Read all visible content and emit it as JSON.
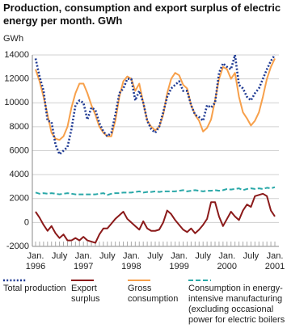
{
  "chart_data": {
    "type": "line",
    "title": "Production, consumption and export surplus of electric energy per month. GWh",
    "y_label": "GWh",
    "categories": [
      "Jan.",
      null,
      null,
      null,
      null,
      null,
      "July",
      null,
      null,
      null,
      null,
      null,
      "Jan.",
      null,
      null,
      null,
      null,
      null,
      "July",
      null,
      null,
      null,
      null,
      null,
      "Jan.",
      null,
      null,
      null,
      null,
      null,
      "July",
      null,
      null,
      null,
      null,
      null,
      "Jan.",
      null,
      null,
      null,
      null,
      null,
      "July",
      null,
      null,
      null,
      null,
      null,
      "Jan.",
      null,
      null,
      null,
      null,
      null,
      "July",
      null,
      null,
      null,
      null,
      null,
      "Jan."
    ],
    "years": [
      "1996",
      "1997",
      "1998",
      "1999",
      "2000",
      "2001"
    ],
    "ylim": [
      -2000,
      14000
    ],
    "yticks": [
      -2000,
      0,
      2000,
      4000,
      6000,
      8000,
      10000,
      12000,
      14000
    ],
    "grid": true,
    "series": [
      {
        "name": "Total production",
        "color": "#1f3a93",
        "style": "dotted",
        "values": [
          13700,
          12200,
          11000,
          8500,
          8400,
          6500,
          5700,
          6000,
          6300,
          7800,
          9800,
          10200,
          10000,
          8600,
          9600,
          9400,
          8300,
          7600,
          7200,
          7500,
          9000,
          10800,
          11200,
          12000,
          12000,
          10200,
          11000,
          10000,
          8500,
          7800,
          7500,
          8000,
          9200,
          10500,
          11200,
          11500,
          11800,
          11000,
          11000,
          9800,
          9000,
          8800,
          8500,
          9800,
          9600,
          10000,
          12500,
          13300,
          13000,
          12800,
          14000,
          11500,
          11200,
          10500,
          10200,
          10800,
          11200,
          12000,
          12800,
          13500,
          14000
        ]
      },
      {
        "name": "Export surplus",
        "color": "#8b1a1a",
        "style": "solid",
        "values": [
          900,
          400,
          -200,
          -700,
          -300,
          -900,
          -1300,
          -1000,
          -1500,
          -1500,
          -1300,
          -1500,
          -1200,
          -1500,
          -1600,
          -1700,
          -1000,
          -500,
          -500,
          -100,
          300,
          600,
          900,
          300,
          0,
          -300,
          -600,
          100,
          -500,
          -700,
          -700,
          -600,
          0,
          1000,
          700,
          200,
          -200,
          -600,
          -800,
          -500,
          -900,
          -600,
          -200,
          300,
          1700,
          1700,
          500,
          -300,
          300,
          900,
          500,
          200,
          1000,
          1500,
          1300,
          2200,
          2300,
          2400,
          2200,
          1000,
          500
        ]
      },
      {
        "name": "Gross consumption",
        "color": "#f7a04b",
        "style": "solid",
        "values": [
          12800,
          11800,
          10500,
          9000,
          7500,
          7000,
          6900,
          7200,
          8000,
          9600,
          10800,
          11600,
          11600,
          10800,
          9800,
          9000,
          8000,
          7500,
          7200,
          7200,
          8500,
          10500,
          11800,
          12200,
          12000,
          11000,
          11600,
          10000,
          8500,
          8000,
          7700,
          8000,
          9000,
          10800,
          12000,
          12500,
          12300,
          11500,
          11200,
          9800,
          9000,
          8500,
          7600,
          7900,
          8600,
          10200,
          12000,
          13000,
          12800,
          12000,
          12500,
          10500,
          9200,
          8700,
          8100,
          8500,
          9200,
          10500,
          12000,
          13000,
          13700
        ]
      },
      {
        "name": "Consumption in energy-intensive manufacturing (excluding occasional power for electric boilers",
        "color": "#2aa8a8",
        "style": "dashed",
        "values": [
          2500,
          2400,
          2450,
          2400,
          2450,
          2400,
          2350,
          2400,
          2450,
          2400,
          2350,
          2350,
          2350,
          2350,
          2350,
          2350,
          2400,
          2450,
          2300,
          2400,
          2450,
          2450,
          2500,
          2500,
          2500,
          2550,
          2600,
          2500,
          2550,
          2550,
          2600,
          2550,
          2600,
          2600,
          2600,
          2600,
          2650,
          2700,
          2600,
          2650,
          2700,
          2650,
          2600,
          2650,
          2650,
          2700,
          2650,
          2700,
          2800,
          2750,
          2800,
          2850,
          2700,
          2800,
          2850,
          2800,
          2850,
          2800,
          2900,
          2850,
          2950
        ]
      }
    ]
  }
}
